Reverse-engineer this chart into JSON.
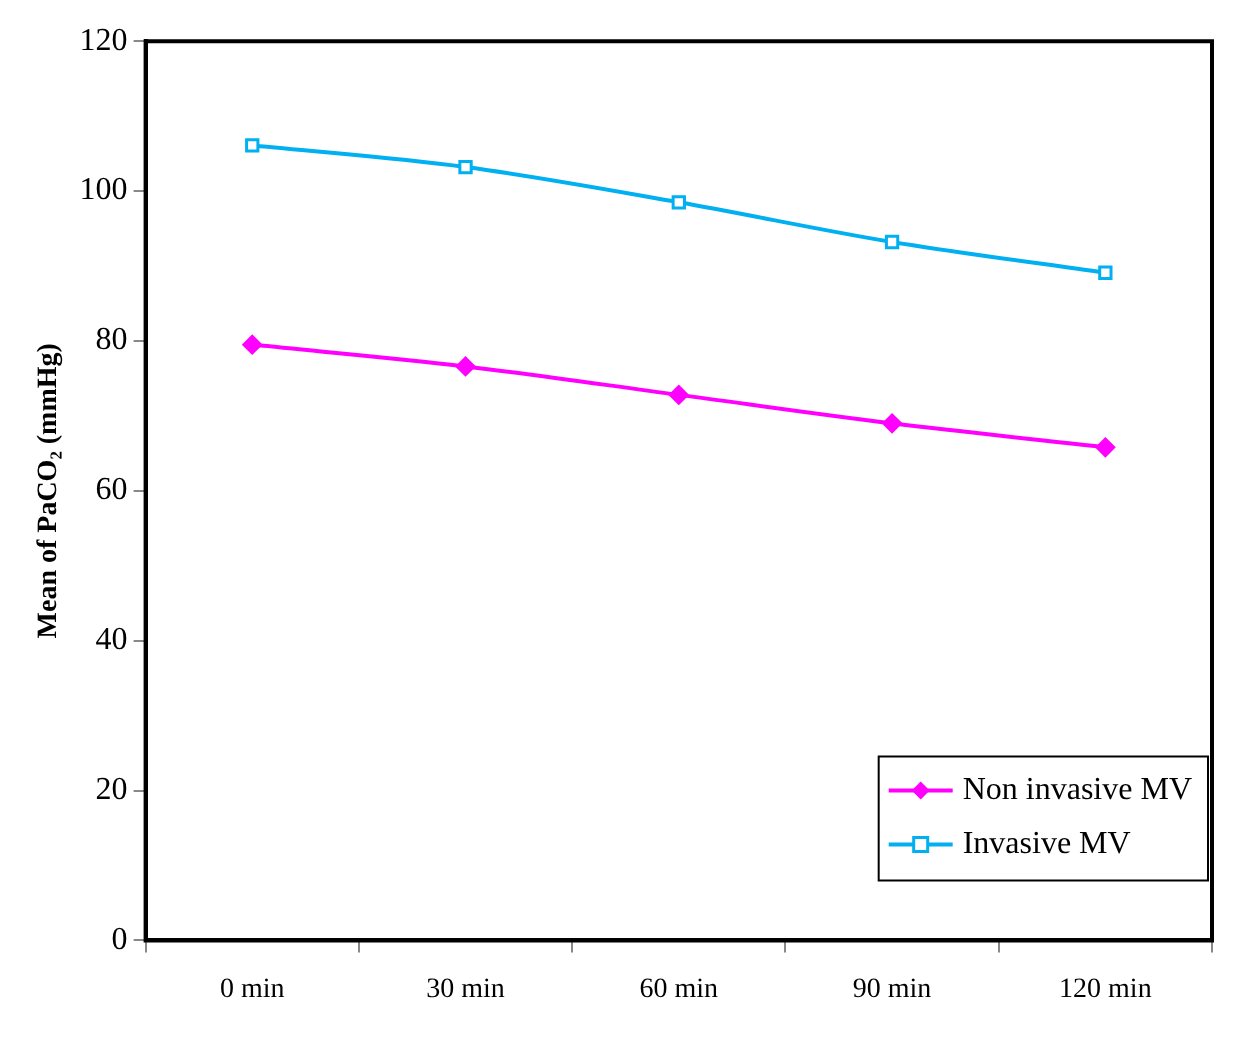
{
  "chart_data": {
    "type": "line",
    "ylabel": "Mean of PaCO₂ (mmHg)",
    "categories": [
      "0 min",
      "30 min",
      "60 min",
      "90 min",
      "120 min"
    ],
    "series": [
      {
        "name": "Non invasive MV",
        "color": "#ff00ff",
        "marker": "diamond",
        "values": [
          79.5,
          76.6,
          72.8,
          69.0,
          65.8
        ]
      },
      {
        "name": "Invasive MV",
        "color": "#00b0f0",
        "marker": "square",
        "values": [
          106.1,
          103.2,
          98.5,
          93.2,
          89.1
        ]
      }
    ],
    "ylim": [
      0,
      120
    ],
    "yticks": [
      0,
      20,
      40,
      60,
      80,
      100,
      120
    ],
    "grid": false,
    "legend": "bottom right"
  }
}
